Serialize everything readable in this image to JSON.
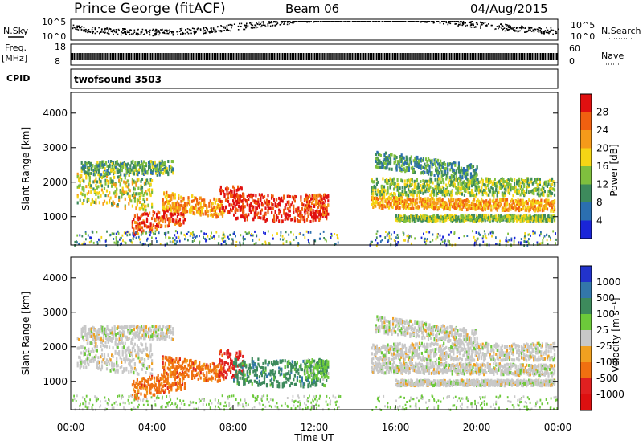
{
  "header": {
    "station": "Prince George (fitACF)",
    "beam": "Beam 06",
    "date": "04/Aug/2015"
  },
  "strips": {
    "nsky_label": "N.Sky",
    "nsearch_label": "N.Search",
    "freq_label": "Freq.",
    "freq_unit": "[MHz]",
    "nave_label": "Nave",
    "cpid_label": "CPID",
    "cpid_value": "twofsound 3503",
    "noise_ticks_left": [
      "10^5",
      "10^0"
    ],
    "noise_ticks_right": [
      "10^5",
      "10^0"
    ],
    "freq_ticks": [
      "18",
      "8"
    ],
    "nave_ticks": [
      "60",
      "0"
    ]
  },
  "chart_data": [
    {
      "type": "heatmap",
      "panel": "power",
      "ylabel": "Slant Range [km]",
      "ylim": [
        180,
        4600
      ],
      "yticks": [
        "1000",
        "2000",
        "3000",
        "4000"
      ],
      "xlim": [
        0,
        24
      ],
      "colorbar_label": "Power [dB]",
      "colorbar_ticks": [
        "4",
        "8",
        "12",
        "16",
        "20",
        "24",
        "28"
      ],
      "colorbar_colors": [
        "#1a25d8",
        "#2b6fb0",
        "#3d8a5c",
        "#7fbf3e",
        "#f5d515",
        "#f59a1a",
        "#f06010",
        "#e01010"
      ],
      "grid": false
    },
    {
      "type": "heatmap",
      "panel": "velocity",
      "ylabel": "Slant Range [km]",
      "ylim": [
        180,
        4600
      ],
      "yticks": [
        "1000",
        "2000",
        "3000",
        "4000"
      ],
      "xlim": [
        0,
        24
      ],
      "xticks": [
        "00:00",
        "04:00",
        "08:00",
        "12:00",
        "16:00",
        "20:00",
        "00:00"
      ],
      "xlabel": "Time UT",
      "colorbar_label": "Velocity [m s⁻¹]",
      "colorbar_ticks": [
        "1000",
        "500",
        "100",
        "25",
        "-25",
        "-100",
        "-500",
        "-1000"
      ],
      "colorbar_colors": [
        "#2233cc",
        "#3377aa",
        "#3d8a5c",
        "#6cc93a",
        "#c8c8c8",
        "#f0a020",
        "#f07010",
        "#e02020",
        "#dd1010"
      ],
      "grid": false
    }
  ]
}
